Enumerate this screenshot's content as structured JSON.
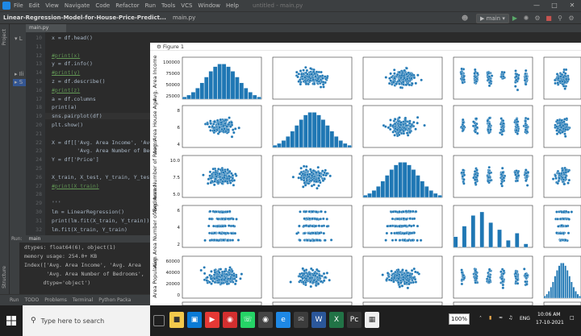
{
  "menubar": {
    "items": [
      "File",
      "Edit",
      "View",
      "Navigate",
      "Code",
      "Refactor",
      "Run",
      "Tools",
      "VCS",
      "Window",
      "Help"
    ],
    "doc_title": "untitled - main.py"
  },
  "navbar": {
    "project": "Linear-Regression-Model-for-House-Price-Predict...",
    "file": "main.py",
    "branch": "main"
  },
  "editor": {
    "tab_label": "main.py",
    "current_line": 19,
    "lines": [
      {
        "no": 10,
        "text": "x = df.head()",
        "kind": "code"
      },
      {
        "no": 11,
        "text": "",
        "kind": "code"
      },
      {
        "no": 12,
        "text": "#print(x)",
        "kind": "comment"
      },
      {
        "no": 13,
        "text": "y = df.info()",
        "kind": "code"
      },
      {
        "no": 14,
        "text": "#print(y)",
        "kind": "comment"
      },
      {
        "no": 15,
        "text": "z = df.describe()",
        "kind": "code"
      },
      {
        "no": 16,
        "text": "#print(z)",
        "kind": "comment"
      },
      {
        "no": 17,
        "text": "a = df.columns",
        "kind": "code"
      },
      {
        "no": 18,
        "text": "print(a)",
        "kind": "code"
      },
      {
        "no": 19,
        "text": "sns.pairplot(df)",
        "kind": "code"
      },
      {
        "no": 20,
        "text": "plt.show()",
        "kind": "code"
      },
      {
        "no": 21,
        "text": "",
        "kind": "code"
      },
      {
        "no": 22,
        "text": "X = df[['Avg. Area Income', 'Avg.",
        "kind": "code"
      },
      {
        "no": 23,
        "text": "        'Avg. Area Number of Bedr",
        "kind": "code"
      },
      {
        "no": 24,
        "text": "Y = df['Price']",
        "kind": "code"
      },
      {
        "no": 25,
        "text": "",
        "kind": "code"
      },
      {
        "no": 26,
        "text": "X_train, X_test, Y_train, Y_test",
        "kind": "code"
      },
      {
        "no": 27,
        "text": "#print(X_train)",
        "kind": "comment"
      },
      {
        "no": 28,
        "text": "",
        "kind": "code"
      },
      {
        "no": 29,
        "text": "'''",
        "kind": "code"
      },
      {
        "no": 30,
        "text": "lm = LinearRegression()",
        "kind": "code"
      },
      {
        "no": 31,
        "text": "print(lm.fit(X_train, Y_train))",
        "kind": "code"
      },
      {
        "no": 32,
        "text": "lm.fit(X_train, Y_train)",
        "kind": "code"
      }
    ]
  },
  "run_panel": {
    "header": "Run:",
    "config": "main",
    "lines": [
      "dtypes: float64(6), object(1)",
      "memory usage: 254.0+ KB",
      "Index(['Avg. Area Income', 'Avg. Area",
      "       'Avg. Area Number of Bedrooms',",
      "      dtype='object')"
    ]
  },
  "bottom_tabs": [
    "Run",
    "TODO",
    "Problems",
    "Terminal",
    "Python Packa"
  ],
  "figure": {
    "window_title": "Figure 1",
    "row_labels": [
      "Avg. Area Income",
      "Avg. Area House Age",
      "Avg. Area Number of Rooms",
      "Avg. Area Number of Bedrooms",
      "Area Population"
    ],
    "y_ticks": [
      [
        "100000",
        "75000",
        "50000",
        "25000"
      ],
      [
        "8",
        "6",
        "4"
      ],
      [
        "10.0",
        "7.5",
        "5.0"
      ],
      [
        "6",
        "4",
        "2"
      ],
      [
        "60000",
        "40000",
        "20000",
        "0"
      ]
    ],
    "point_color": "#1f77b4"
  },
  "taskbar": {
    "search_placeholder": "Type here to search",
    "zoom": "100%",
    "language": "ENG",
    "time": "10:06 AM",
    "date": "17-10-2021"
  }
}
